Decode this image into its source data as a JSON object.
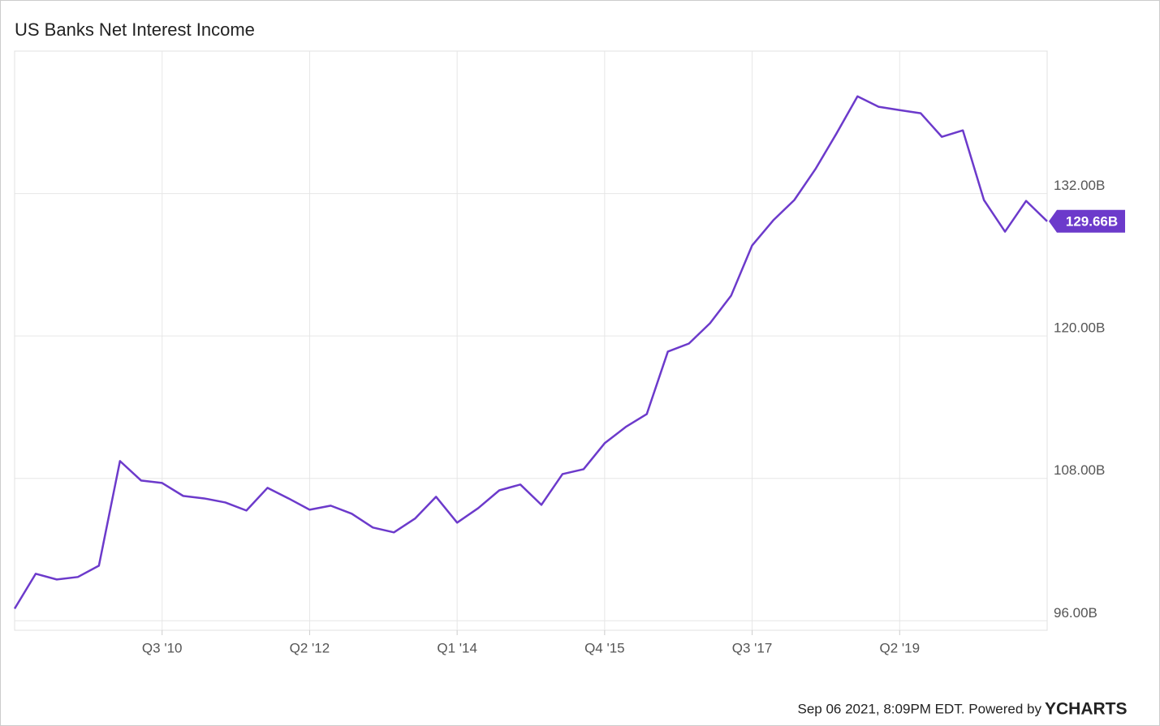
{
  "chart_data": {
    "type": "line",
    "title": "US Banks Net Interest Income",
    "categories": [
      null,
      null,
      null,
      null,
      null,
      null,
      null,
      "Q3 '10",
      null,
      null,
      null,
      null,
      null,
      null,
      "Q2 '12",
      null,
      null,
      null,
      null,
      null,
      null,
      "Q1 '14",
      null,
      null,
      null,
      null,
      null,
      null,
      "Q4 '15",
      null,
      null,
      null,
      null,
      null,
      null,
      "Q3 '17",
      null,
      null,
      null,
      null,
      null,
      null,
      "Q2 '19",
      null,
      null,
      null,
      null,
      null,
      null,
      null
    ],
    "series": [
      {
        "name": "US Banks Net Interest Income",
        "color": "#6c3acb",
        "values": [
          97.02,
          99.96,
          99.48,
          99.69,
          100.64,
          109.46,
          107.82,
          107.61,
          106.52,
          106.31,
          105.97,
          105.29,
          107.2,
          106.31,
          105.36,
          105.7,
          105.02,
          103.86,
          103.45,
          104.61,
          106.45,
          104.27,
          105.49,
          106.99,
          107.48,
          105.77,
          108.36,
          108.77,
          110.96,
          112.33,
          113.42,
          118.68,
          119.36,
          121.07,
          123.39,
          127.63,
          129.74,
          131.45,
          134.05,
          137.05,
          140.19,
          139.31,
          139.03,
          138.76,
          136.78,
          137.32,
          131.45,
          128.79,
          131.38,
          129.66
        ],
        "value_labels": [
          null,
          null,
          null,
          null,
          null,
          null,
          null,
          null,
          null,
          null,
          null,
          null,
          null,
          null,
          null,
          null,
          null,
          null,
          null,
          null,
          null,
          null,
          null,
          null,
          null,
          null,
          null,
          null,
          null,
          null,
          null,
          null,
          null,
          null,
          null,
          null,
          null,
          null,
          null,
          null,
          null,
          null,
          null,
          null,
          null,
          null,
          null,
          null,
          null,
          "129.66B"
        ]
      }
    ],
    "ylim": [
      95.2,
      144
    ],
    "yticks": [
      {
        "value": 96,
        "label": "96.00B"
      },
      {
        "value": 108,
        "label": "108.00B"
      },
      {
        "value": 120,
        "label": "120.00B"
      },
      {
        "value": 132,
        "label": "132.00B"
      }
    ],
    "grid": true,
    "footer": {
      "text": "Sep 06 2021, 8:09PM EDT. Powered by",
      "brand": "YCHARTS"
    }
  }
}
